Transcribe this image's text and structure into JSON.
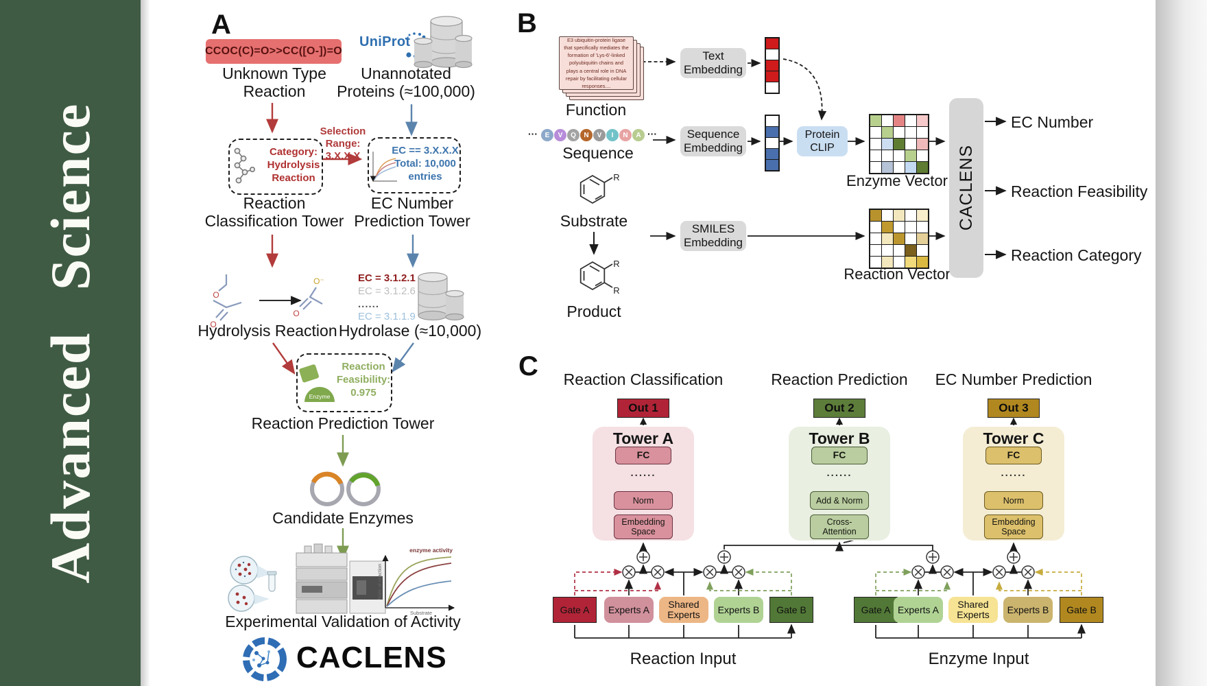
{
  "sidebar": {
    "journal": "Advanced Science"
  },
  "colors": {
    "sidebar_green": "#3f5b44",
    "uniprot_blue": "#2e6fb0",
    "arrow_red": "#b23b3b",
    "arrow_blue": "#5b84ad",
    "arrow_green": "#7d9c52",
    "out1": "#b12437",
    "out2": "#5d7d3a",
    "out3": "#b1881f",
    "protein_clip": "#cadef2",
    "embedding_box": "#dadada"
  },
  "panelA": {
    "label": "A",
    "smiles": "CCOC(C)=O>>CC([O-])=O",
    "unknown_reaction": "Unknown Type\nReaction",
    "uniprot": "UniProt",
    "unannotated": "Unannotated\nProteins (≈100,000)",
    "selection": "Selection\nRange:\n3.X.X.X",
    "category_box": "Category:\nHydrolysis\nReaction",
    "ec_box": "EC == 3.X.X.X\nTotal: 10,000\nentries",
    "classification_tower": "Reaction\nClassification Tower",
    "prediction_tower": "EC Number\nPrediction Tower",
    "ec_list": [
      "EC = 3.1.2.1",
      "EC = 3.1.2.6",
      "......",
      "EC = 3.1.1.9"
    ],
    "hydrolysis": "Hydrolysis Reaction",
    "hydrolase": "Hydrolase (≈10,000)",
    "enzyme_badge": "Enzyme",
    "feasibility": "Reaction\nFeasibility:\n0.975",
    "reaction_pred_tower": "Reaction Prediction Tower",
    "candidate": "Candidate Enzymes",
    "plot": {
      "curve_label": "enzyme activity",
      "ylabel": "Rate of reaction",
      "xlabel": "Substrate"
    },
    "validation": "Experimental Validation of Activity",
    "wordmark": "CACLENS"
  },
  "panelB": {
    "label": "B",
    "card_text": "E3 ubiquitin-protein ligase that specifically mediates the formation of 'Lys-6'-linked polyubiquitin chains and plays a central role in DNA repair by facilitating cellular responses....",
    "function_label": "Function",
    "sequence_label": "Sequence",
    "substrate_label": "Substrate",
    "product_label": "Product",
    "r_group": "R",
    "dots": "···",
    "sequence": [
      {
        "letter": "E",
        "color": "#8ca9c9"
      },
      {
        "letter": "V",
        "color": "#b78cd9"
      },
      {
        "letter": "Q",
        "color": "#a3a3a3"
      },
      {
        "letter": "N",
        "color": "#b5672b"
      },
      {
        "letter": "V",
        "color": "#9a9a9a"
      },
      {
        "letter": "I",
        "color": "#72c3c9"
      },
      {
        "letter": "N",
        "color": "#e8a3a3"
      },
      {
        "letter": "A",
        "color": "#b8cc90"
      }
    ],
    "text_embedding": "Text\nEmbedding",
    "sequence_embedding": "Sequence\nEmbedding",
    "smiles_embedding": "SMILES\nEmbedding",
    "protein_clip": "Protein\nCLIP",
    "enzyme_vector_label": "Enzyme Vector",
    "reaction_vector_label": "Reaction Vector",
    "caclens": "CACLENS",
    "outputs": [
      "EC Number",
      "Reaction Feasibility",
      "Reaction Category"
    ],
    "text_vector": [
      "#cf1b1b",
      "#ffffff",
      "#cf1b1b",
      "#cf1b1b",
      "#ffffff"
    ],
    "seq_vector": [
      "#ffffff",
      "#4a6fad",
      "#ffffff",
      "#4a6fad",
      "#4a6fad"
    ],
    "enzyme_matrix": [
      "#b8d08e",
      "#ffffff",
      "#e48484",
      "#ffffff",
      "#f6caca",
      "#ffffff",
      "#b8d08e",
      "#ffffff",
      "#ffffff",
      "#ffffff",
      "#ffffff",
      "#cdddf1",
      "#5f7c33",
      "#ffffff",
      "#f0baba",
      "#ffffff",
      "#ffffff",
      "#ffffff",
      "#b8d08e",
      "#ffffff",
      "#ffffff",
      "#b6c3d7",
      "#ffffff",
      "#c4daf3",
      "#5f7c33"
    ],
    "reaction_matrix": [
      "#b8922c",
      "#ffffff",
      "#f3e7bd",
      "#ffffff",
      "#f8eecb",
      "#ffffff",
      "#c09a2e",
      "#ffffff",
      "#ffffff",
      "#ffffff",
      "#ffffff",
      "#f3e7bd",
      "#bb952e",
      "#ffffff",
      "#e4cf99",
      "#ffffff",
      "#ffffff",
      "#ffffff",
      "#7a5f1d",
      "#ffffff",
      "#ffffff",
      "#f3e7bd",
      "#ffffff",
      "#f1da7b",
      "#dab942"
    ]
  },
  "panelC": {
    "label": "C",
    "headings": [
      "Reaction Classification",
      "Reaction Prediction",
      "EC Number Prediction"
    ],
    "outs": [
      "Out 1",
      "Out 2",
      "Out 3"
    ],
    "towers": [
      {
        "title": "Tower A",
        "fc": "FC",
        "dots": "......",
        "mid": "Norm",
        "bottom": "Embedding\nSpace"
      },
      {
        "title": "Tower B",
        "fc": "FC",
        "dots": "......",
        "mid": "Add & Norm",
        "bottom": "Cross-\nAttention"
      },
      {
        "title": "Tower C",
        "fc": "FC",
        "dots": "......",
        "mid": "Norm",
        "bottom": "Embedding\nSpace"
      }
    ],
    "moe_left": {
      "gate_a": "Gate A",
      "experts_a": "Experts A",
      "shared": "Shared\nExperts",
      "experts_b": "Experts B",
      "gate_b": "Gate B",
      "input": "Reaction Input"
    },
    "moe_right": {
      "gate_a": "Gate A",
      "experts_a": "Experts A",
      "shared": "Shared\nExperts",
      "experts_b": "Experts B",
      "gate_b": "Gate B",
      "input": "Enzyme Input"
    }
  }
}
